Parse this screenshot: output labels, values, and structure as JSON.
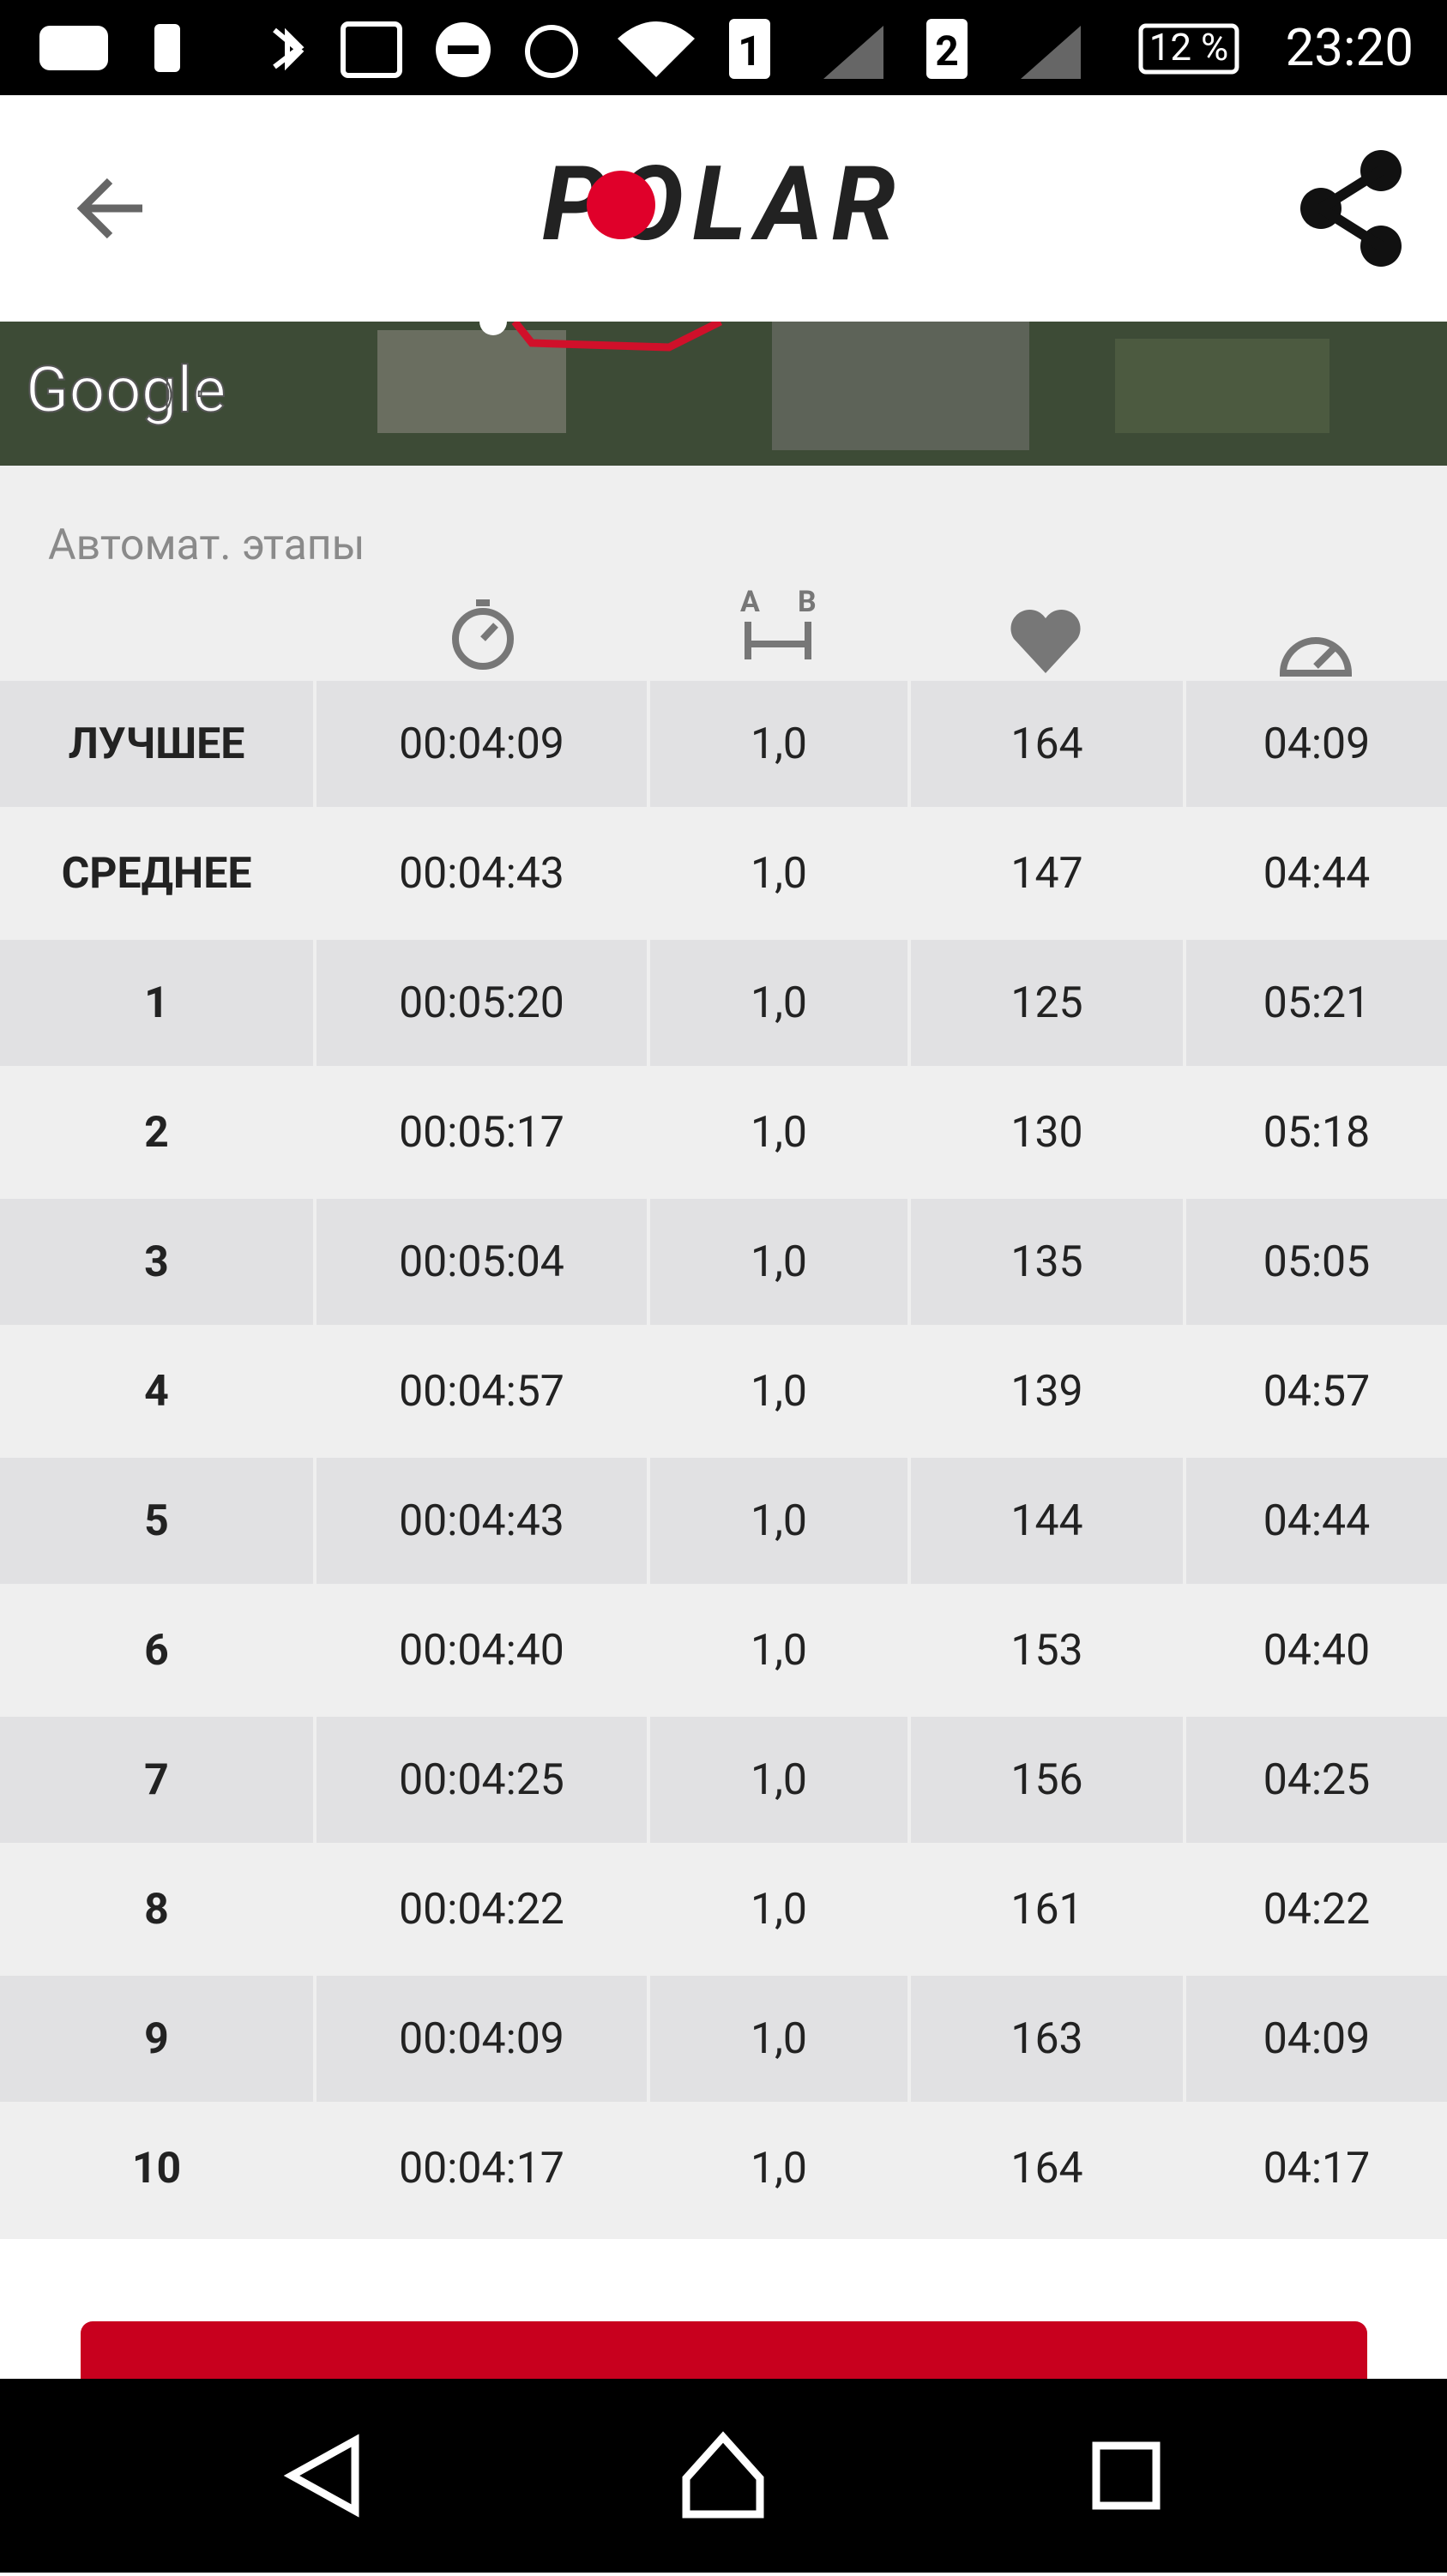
{
  "status_bar": {
    "sim1": "1",
    "sim2": "2",
    "battery": "12 %",
    "time": "23:20"
  },
  "header": {
    "logo": "POLAR"
  },
  "map": {
    "attribution": "Google"
  },
  "section_title": "Автомат. этапы",
  "table": {
    "rows": [
      [
        "ЛУЧШЕЕ",
        "00:04:09",
        "1,0",
        "164",
        "04:09"
      ],
      [
        "СРЕДНЕЕ",
        "00:04:43",
        "1,0",
        "147",
        "04:44"
      ],
      [
        "1",
        "00:05:20",
        "1,0",
        "125",
        "05:21"
      ],
      [
        "2",
        "00:05:17",
        "1,0",
        "130",
        "05:18"
      ],
      [
        "3",
        "00:05:04",
        "1,0",
        "135",
        "05:05"
      ],
      [
        "4",
        "00:04:57",
        "1,0",
        "139",
        "04:57"
      ],
      [
        "5",
        "00:04:43",
        "1,0",
        "144",
        "04:44"
      ],
      [
        "6",
        "00:04:40",
        "1,0",
        "153",
        "04:40"
      ],
      [
        "7",
        "00:04:25",
        "1,0",
        "156",
        "04:25"
      ],
      [
        "8",
        "00:04:22",
        "1,0",
        "161",
        "04:22"
      ],
      [
        "9",
        "00:04:09",
        "1,0",
        "163",
        "04:09"
      ],
      [
        "10",
        "00:04:17",
        "1,0",
        "164",
        "04:17"
      ]
    ]
  }
}
